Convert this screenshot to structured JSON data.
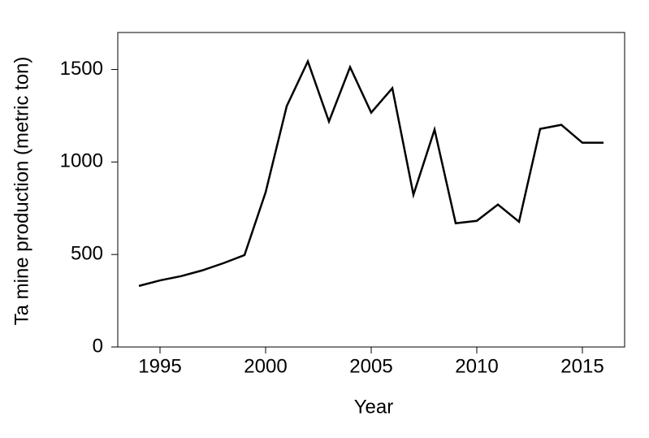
{
  "chart_data": {
    "type": "line",
    "x_label": "Year",
    "y_label": "Ta mine production (metric ton)",
    "x": [
      1994,
      1995,
      1996,
      1997,
      1998,
      1999,
      2000,
      2001,
      2002,
      2003,
      2004,
      2005,
      2006,
      2007,
      2008,
      2009,
      2010,
      2011,
      2012,
      2013,
      2014,
      2015,
      2016
    ],
    "series": [
      {
        "color": "#000000",
        "values": [
          330,
          360,
          383,
          414,
          453,
          497,
          836,
          1302,
          1544,
          1219,
          1513,
          1267,
          1399,
          823,
          1175,
          669,
          682,
          770,
          677,
          1179,
          1201,
          1104,
          1104
        ]
      }
    ],
    "xlim": [
      1993,
      2017
    ],
    "xticks": [
      1995,
      2000,
      2005,
      2010,
      2015
    ],
    "ylim": [
      0,
      1700
    ],
    "yticks": [
      0,
      500,
      1000,
      1500
    ],
    "grid": false
  }
}
